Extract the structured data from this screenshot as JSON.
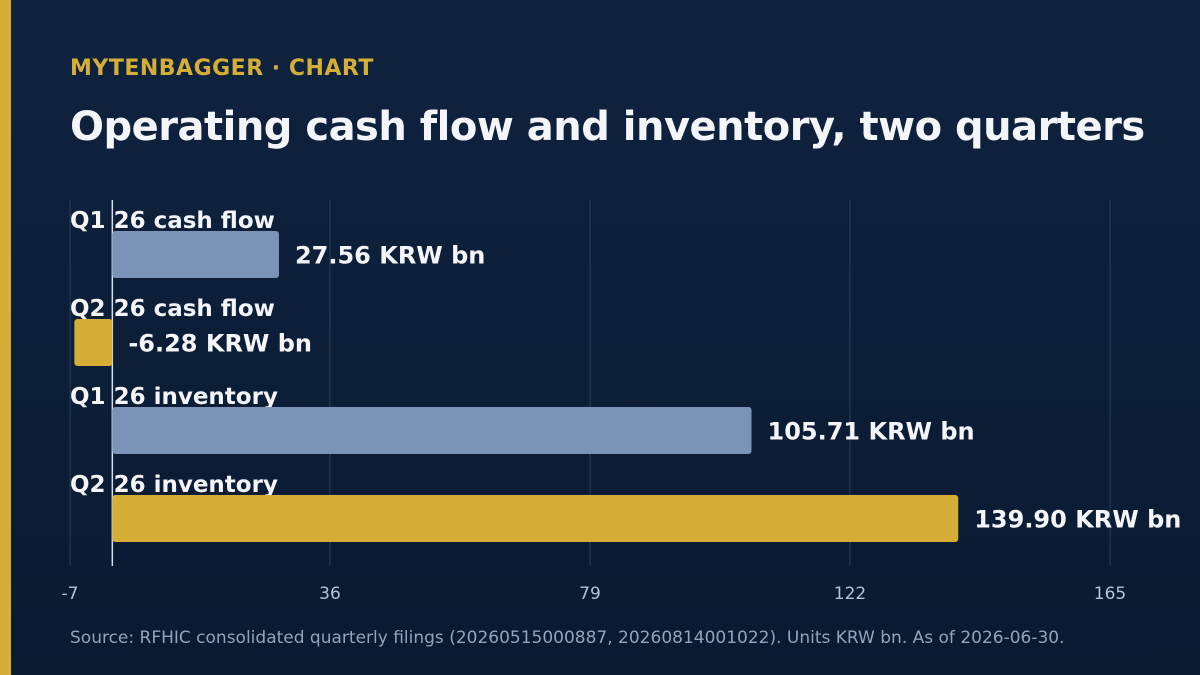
{
  "header": {
    "kicker": "MYTENBAGGER · CHART",
    "title": "Operating cash flow and inventory, two quarters"
  },
  "footer": {
    "source": "Source: RFHIC consolidated quarterly filings (20260515000887, 20260814001022). Units KRW bn. As of 2026-06-30."
  },
  "colors": {
    "accent": "#d4ae36",
    "q1_bar": "#7b93b6",
    "q2_bar": "#d4ae36",
    "background": "#0c1d36"
  },
  "chart_data": {
    "type": "bar",
    "orientation": "horizontal",
    "categories": [
      "Q1 26 cash flow",
      "Q2 26 cash flow",
      "Q1 26 inventory",
      "Q2 26 inventory"
    ],
    "values": [
      27.56,
      -6.28,
      105.71,
      139.9
    ],
    "value_labels": [
      "27.56 KRW bn",
      "-6.28 KRW bn",
      "105.71 KRW bn",
      "139.90 KRW bn"
    ],
    "bar_colors": [
      "#7b93b6",
      "#d4ae36",
      "#7b93b6",
      "#d4ae36"
    ],
    "xticks": [
      -7,
      36,
      79,
      122,
      165
    ],
    "xlim": [
      -7,
      165
    ],
    "grid": true,
    "xlabel": "",
    "ylabel": ""
  }
}
